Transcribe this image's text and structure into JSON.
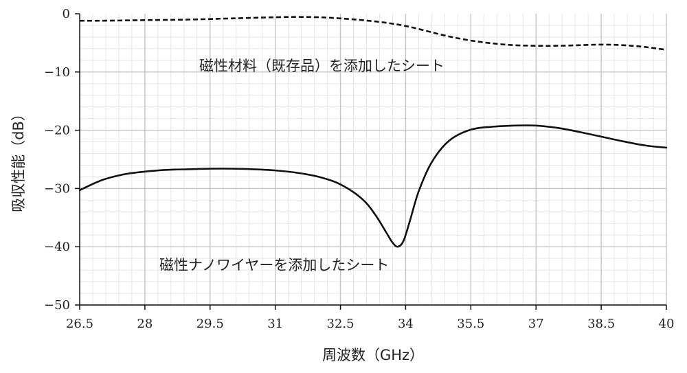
{
  "chart_data": {
    "type": "line",
    "title": "",
    "xlabel": "周波数（GHz）",
    "ylabel": "吸収性能（dB）",
    "xlim": [
      26.5,
      40
    ],
    "ylim": [
      -50,
      0
    ],
    "x_ticks": [
      "26.5",
      "28",
      "29.5",
      "31",
      "32.5",
      "34",
      "35.5",
      "37",
      "38.5",
      "40"
    ],
    "y_ticks": [
      "0",
      "−10",
      "−20",
      "−30",
      "−40",
      "−50"
    ],
    "grid": true,
    "legend": "none",
    "annotations": [
      "磁性材料（既存品）を添加したシート",
      "磁性ナノワイヤーを添加したシート"
    ],
    "series": [
      {
        "style": "dashed",
        "x": [
          26.5,
          27,
          28,
          29,
          30,
          31,
          31.5,
          32,
          32.5,
          33,
          33.5,
          34,
          34.5,
          35,
          35.5,
          36,
          36.5,
          37,
          37.5,
          38,
          38.5,
          39,
          39.5,
          40
        ],
        "y": [
          -1.2,
          -1.2,
          -1.1,
          -1.0,
          -0.8,
          -0.6,
          -0.55,
          -0.6,
          -0.8,
          -1.1,
          -1.5,
          -2.1,
          -3.0,
          -3.9,
          -4.6,
          -5.1,
          -5.4,
          -5.5,
          -5.5,
          -5.4,
          -5.3,
          -5.4,
          -5.7,
          -6.2
        ]
      },
      {
        "style": "solid",
        "x": [
          26.5,
          27,
          27.5,
          28,
          28.5,
          29,
          29.5,
          30,
          30.5,
          31,
          31.5,
          32,
          32.5,
          33,
          33.3,
          33.55,
          33.7,
          33.82,
          33.95,
          34.1,
          34.3,
          34.6,
          35,
          35.5,
          36,
          36.5,
          37,
          37.5,
          38,
          38.5,
          39,
          39.5,
          40
        ],
        "y": [
          -30.3,
          -28.6,
          -27.6,
          -27.1,
          -26.8,
          -26.7,
          -26.6,
          -26.6,
          -26.7,
          -26.9,
          -27.3,
          -28.0,
          -29.3,
          -31.8,
          -34.5,
          -37.5,
          -39.3,
          -40.0,
          -39.0,
          -35.5,
          -30.5,
          -25.5,
          -21.8,
          -19.9,
          -19.4,
          -19.2,
          -19.2,
          -19.6,
          -20.3,
          -21.1,
          -21.9,
          -22.6,
          -23.0
        ]
      }
    ]
  }
}
